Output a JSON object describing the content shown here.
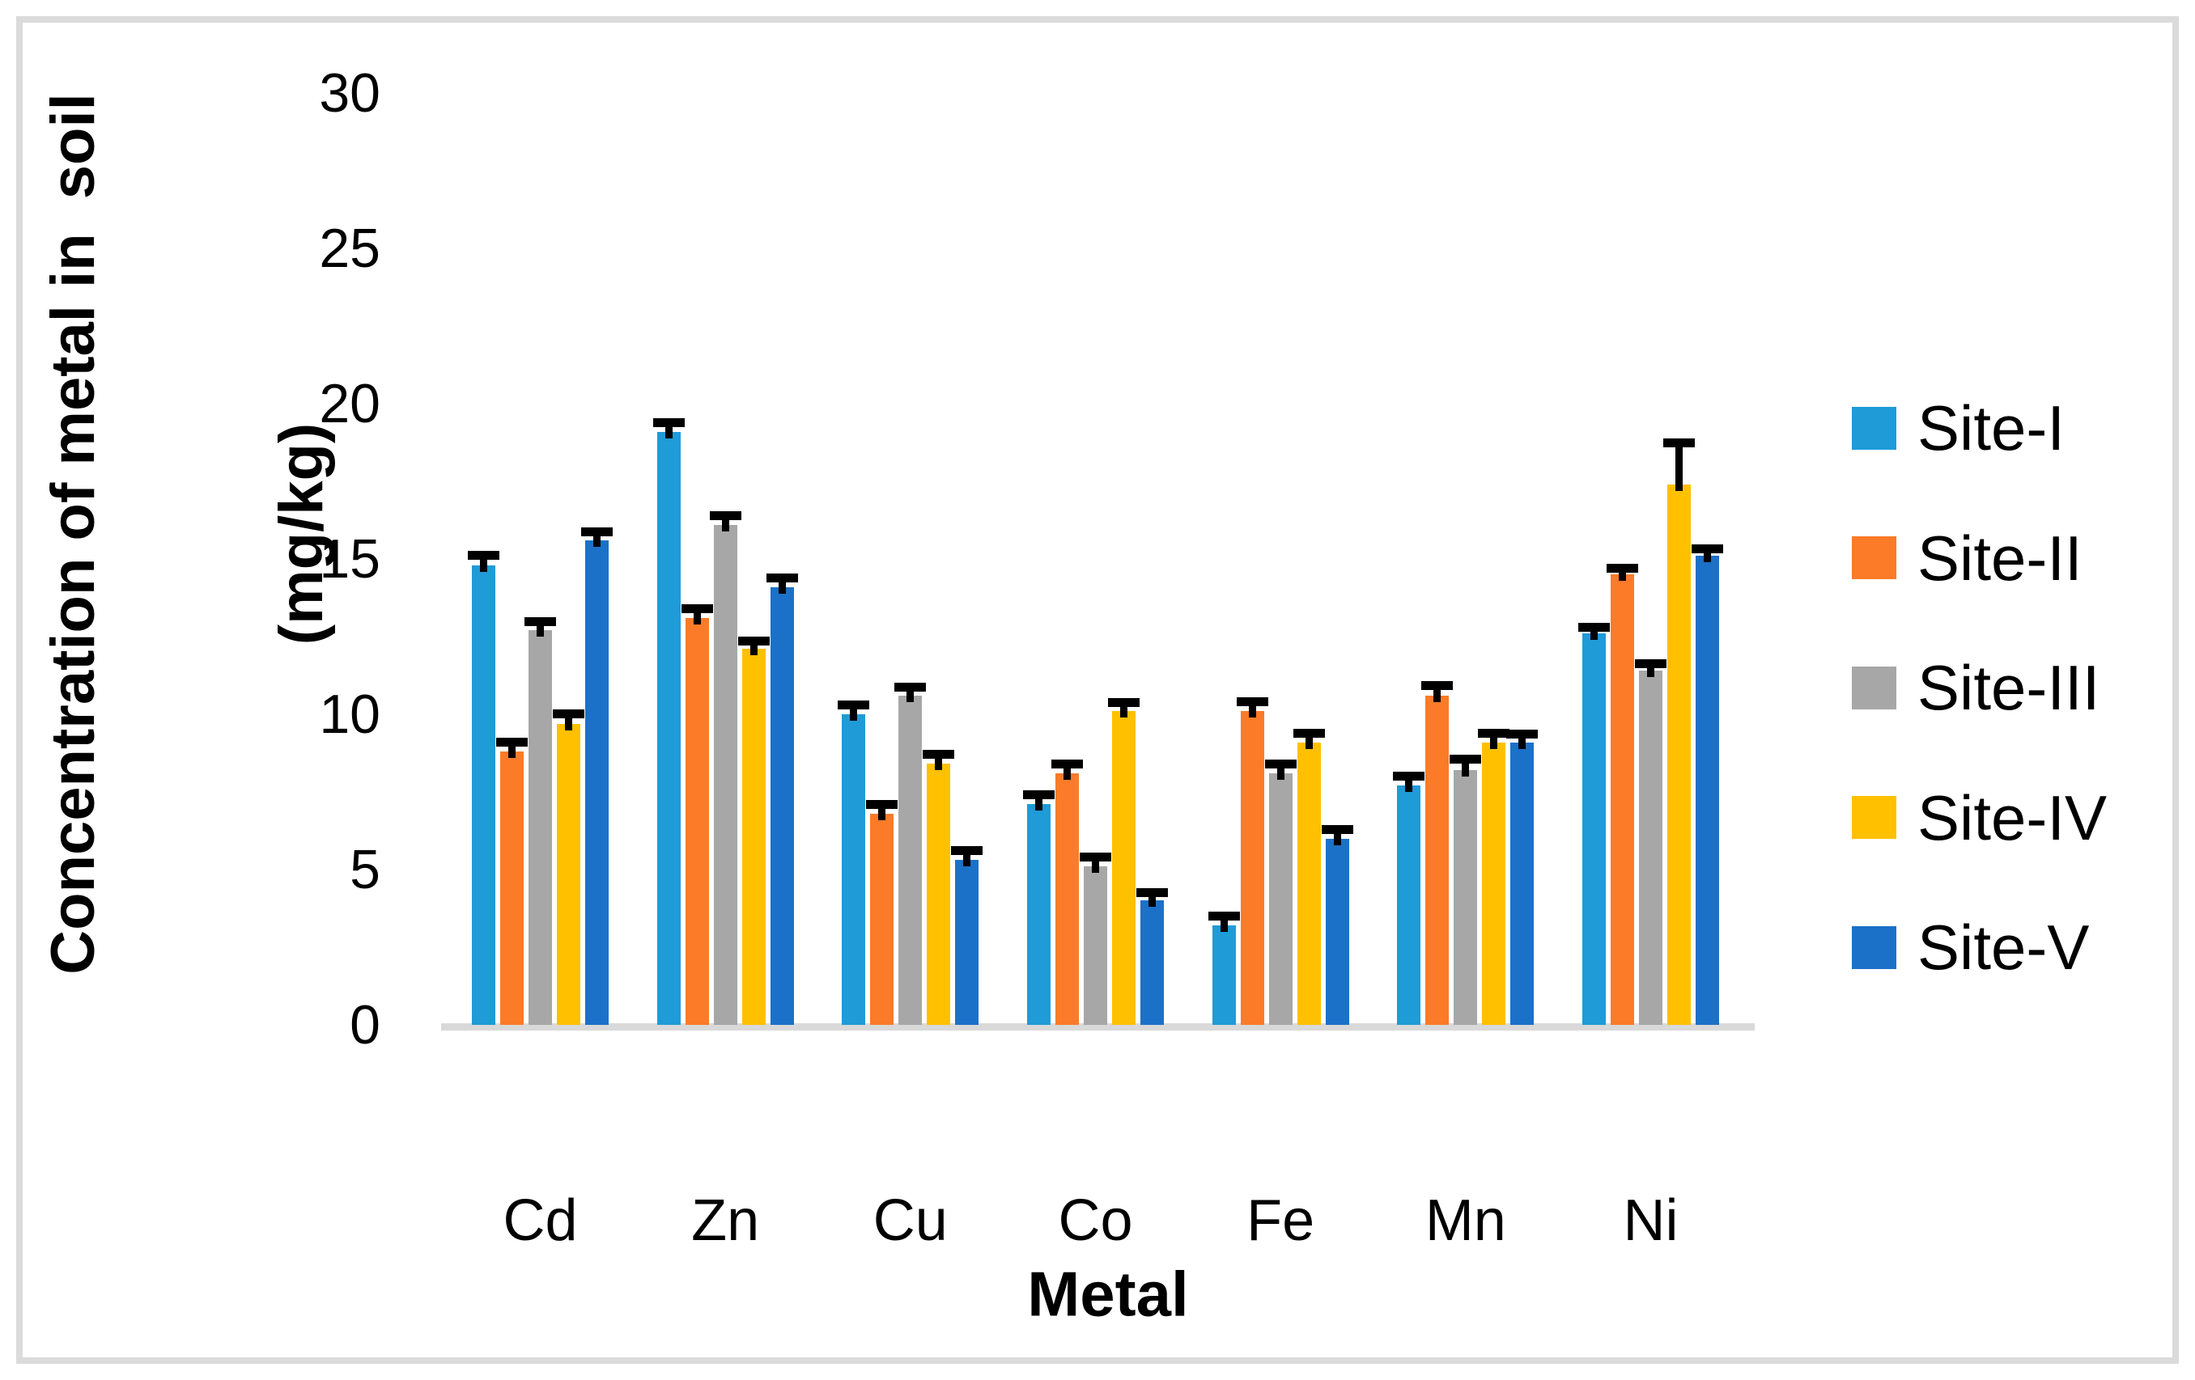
{
  "figure": {
    "y_axis_title_line1": "Concentration of metal in  soil",
    "y_axis_title_line2": "(mg/kg)",
    "x_axis_title": "Metal",
    "axis_line_color": "#D9D9D9",
    "frame_border_color": "#DBDBDB",
    "background_color": "#FFFFFF",
    "error_bar_color": "#000000"
  },
  "chart_data": {
    "type": "bar",
    "title": "",
    "xlabel": "Metal",
    "ylabel": "Concentration of metal in  soil (mg/kg)",
    "categories": [
      "Cd",
      "Zn",
      "Cu",
      "Co",
      "Fe",
      "Mn",
      "Ni"
    ],
    "series": [
      {
        "name": "Site-I",
        "color": "#1F9BD8",
        "values": [
          14.8,
          19.1,
          10.0,
          7.1,
          3.2,
          7.7,
          12.6
        ],
        "errors": [
          0.32,
          0.3,
          0.3,
          0.3,
          0.3,
          0.3,
          0.2
        ]
      },
      {
        "name": "Site-II",
        "color": "#FB7B28",
        "values": [
          8.8,
          13.1,
          6.8,
          8.1,
          10.1,
          10.6,
          14.5
        ],
        "errors": [
          0.31,
          0.3,
          0.3,
          0.3,
          0.3,
          0.32,
          0.2
        ]
      },
      {
        "name": "Site-III",
        "color": "#A8A7A7",
        "values": [
          12.7,
          16.1,
          10.6,
          5.1,
          8.1,
          8.2,
          11.4
        ],
        "errors": [
          0.29,
          0.3,
          0.28,
          0.3,
          0.3,
          0.35,
          0.22
        ]
      },
      {
        "name": "Site-IV",
        "color": "#FFC000",
        "values": [
          9.7,
          12.1,
          8.4,
          10.1,
          9.1,
          9.1,
          17.4
        ],
        "errors": [
          0.32,
          0.25,
          0.3,
          0.28,
          0.3,
          0.3,
          1.35
        ]
      },
      {
        "name": "Site-V",
        "color": "#1B71C8",
        "values": [
          15.6,
          14.1,
          5.3,
          4.0,
          6.0,
          9.1,
          15.1
        ],
        "errors": [
          0.26,
          0.28,
          0.3,
          0.25,
          0.28,
          0.25,
          0.23
        ]
      }
    ],
    "ylim": [
      0,
      30
    ],
    "yticks": [
      0,
      5,
      10,
      15,
      20,
      25,
      30
    ],
    "grid": false,
    "legend_position": "right",
    "error_bars": true
  }
}
